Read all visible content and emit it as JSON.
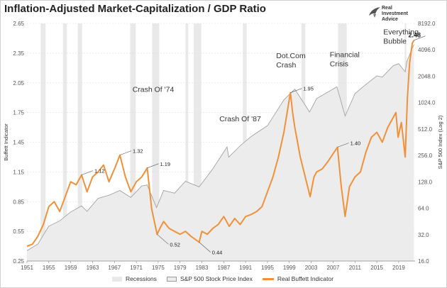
{
  "title": "Inflation-Adjusted Market-Capitalization / GDP Ratio",
  "logo": {
    "lines": [
      "Real",
      "Investment",
      "Advice"
    ]
  },
  "chart_data": {
    "type": "line",
    "left_axis": {
      "label": "Buffett Indicator",
      "ticks": [
        2.65,
        2.35,
        2.05,
        1.75,
        1.45,
        1.15,
        0.85,
        0.55,
        0.25
      ],
      "ylim": [
        0.25,
        2.65
      ]
    },
    "right_axis": {
      "label": "S&P 500 Index (Log 2)",
      "scale": "log2",
      "ticks": [
        8192,
        4096,
        2048,
        1024,
        512,
        256,
        128,
        64,
        32,
        16
      ],
      "tick_labels": [
        "8192.0",
        "4096.0",
        "2048.0",
        "1024.0",
        "512.0",
        "256.0",
        "128.0",
        "64.0",
        "32.0",
        "16.0"
      ],
      "ylim": [
        16,
        8192
      ]
    },
    "x_axis": {
      "xlim": [
        1951,
        2022
      ],
      "ticks": [
        1951,
        1955,
        1959,
        1963,
        1967,
        1971,
        1975,
        1979,
        1983,
        1987,
        1991,
        1995,
        1999,
        2003,
        2007,
        2011,
        2015,
        2019
      ]
    },
    "recessions": [
      [
        1953.5,
        1954.4
      ],
      [
        1957.6,
        1958.3
      ],
      [
        1960.3,
        1961.1
      ],
      [
        1969.9,
        1970.9
      ],
      [
        1973.9,
        1975.2
      ],
      [
        1980.0,
        1980.5
      ],
      [
        1981.5,
        1982.9
      ],
      [
        1990.5,
        1991.2
      ],
      [
        2001.2,
        2001.9
      ],
      [
        2007.9,
        2009.5
      ],
      [
        2020.1,
        2020.4
      ]
    ],
    "series": [
      {
        "name": "S&P 500 Stock Price Index",
        "type": "area",
        "color": "#9a9a9a",
        "fill": "#ececec",
        "x": [
          1951,
          1953,
          1955,
          1957,
          1959,
          1961,
          1962,
          1964,
          1966,
          1968,
          1970,
          1972,
          1973,
          1974.7,
          1976,
          1978,
          1980,
          1982.5,
          1985,
          1987.6,
          1987.9,
          1990,
          1992,
          1995,
          1998,
          2000,
          2002.7,
          2004,
          2007.7,
          2009.2,
          2011,
          2013,
          2015,
          2016,
          2018,
          2019,
          2020.2,
          2020.5,
          2021.5,
          2021.8
        ],
        "y": [
          21,
          25,
          40,
          46,
          58,
          68,
          59,
          83,
          90,
          102,
          85,
          115,
          118,
          65,
          102,
          95,
          130,
          112,
          180,
          320,
          245,
          330,
          420,
          560,
          1100,
          1460,
          800,
          1140,
          1550,
          720,
          1300,
          1650,
          2070,
          2000,
          2700,
          2850,
          2300,
          3000,
          4300,
          4700
        ]
      },
      {
        "name": "Real Buffett Indicator",
        "type": "line",
        "color": "#f0913a",
        "x": [
          1951,
          1952,
          1953,
          1954,
          1955,
          1956,
          1957,
          1958,
          1959,
          1960,
          1961,
          1962,
          1963,
          1964,
          1965,
          1966,
          1967,
          1968,
          1969,
          1970,
          1971,
          1972,
          1973,
          1973.8,
          1974.8,
          1975.5,
          1976,
          1977,
          1978,
          1979,
          1980,
          1981,
          1982.5,
          1983,
          1984,
          1985,
          1986,
          1987,
          1988,
          1989,
          1990,
          1991,
          1992,
          1993,
          1994,
          1995,
          1996,
          1997,
          1998,
          1999.2,
          1999.6,
          2000,
          2001,
          2002.8,
          2003.5,
          2004,
          2005,
          2006,
          2007.8,
          2008.5,
          2009.2,
          2010,
          2011,
          2012,
          2013,
          2014,
          2015,
          2016,
          2017,
          2018.5,
          2018.9,
          2019.5,
          2020.2,
          2020.6,
          2021,
          2021.5,
          2021.8
        ],
        "y": [
          0.4,
          0.42,
          0.5,
          0.62,
          0.8,
          0.85,
          0.75,
          0.9,
          1.05,
          1.02,
          1.12,
          0.95,
          1.1,
          1.15,
          1.22,
          1.05,
          1.18,
          1.32,
          1.1,
          0.95,
          1.05,
          1.1,
          1.19,
          0.78,
          0.52,
          0.6,
          0.65,
          0.58,
          0.55,
          0.52,
          0.55,
          0.5,
          0.44,
          0.55,
          0.52,
          0.58,
          0.62,
          0.7,
          0.6,
          0.68,
          0.62,
          0.7,
          0.72,
          0.75,
          0.8,
          0.95,
          1.1,
          1.3,
          1.55,
          1.95,
          1.75,
          1.6,
          1.3,
          0.9,
          1.1,
          1.15,
          1.18,
          1.25,
          1.4,
          1.0,
          0.7,
          1.0,
          1.1,
          1.15,
          1.35,
          1.5,
          1.55,
          1.45,
          1.6,
          1.75,
          1.5,
          1.65,
          1.3,
          1.9,
          2.25,
          2.45,
          2.48
        ]
      }
    ],
    "data_labels": [
      {
        "text": "1.12",
        "x": 1961,
        "y": 1.12
      },
      {
        "text": "1.32",
        "x": 1968,
        "y": 1.32
      },
      {
        "text": "1.19",
        "x": 1973,
        "y": 1.19
      },
      {
        "text": "0.52",
        "x": 1974.8,
        "y": 0.52
      },
      {
        "text": "0.44",
        "x": 1982.5,
        "y": 0.44
      },
      {
        "text": "1.95",
        "x": 1999.2,
        "y": 1.95
      },
      {
        "text": "1.40",
        "x": 2007.8,
        "y": 1.4
      },
      {
        "text": "2.48",
        "x": 2021.8,
        "y": 2.48,
        "color": "#ff0000"
      }
    ],
    "annotations": [
      {
        "lines": [
          "Crash Of '74"
        ],
        "x": 1970.3,
        "y": 1.96
      },
      {
        "lines": [
          "Crash Of '87"
        ],
        "x": 1986.2,
        "y": 1.66
      },
      {
        "lines": [
          "Dot.Com",
          "Crash"
        ],
        "x": 1996.6,
        "y": 2.3
      },
      {
        "lines": [
          "Financial",
          "Crisis"
        ],
        "x": 2006.4,
        "y": 2.31
      },
      {
        "lines": [
          "Everything",
          "Bubble"
        ],
        "x": 2016.2,
        "y": 2.54
      }
    ],
    "legend": {
      "position": "bottom",
      "items": [
        "Recessions",
        "S&P 500 Stock Price Index",
        "Real Buffett Indicator"
      ]
    }
  }
}
